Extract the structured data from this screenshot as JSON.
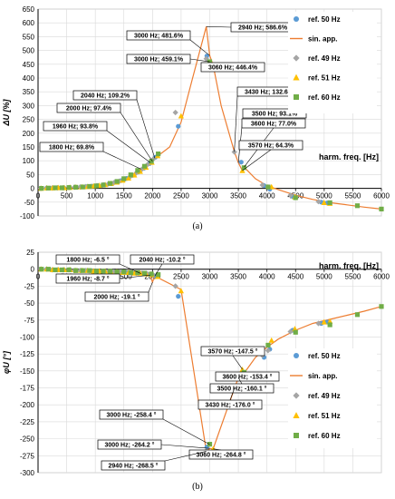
{
  "chart_data": [
    {
      "type": "scatter",
      "panel_label": "(a)",
      "xlabel": "harm. freq. [Hz]",
      "ylabel": "ΔU [%]",
      "xlim": [
        0,
        6000
      ],
      "ylim": [
        -100,
        650
      ],
      "xticks": [
        0,
        500,
        1000,
        1500,
        2000,
        2500,
        3000,
        3500,
        4000,
        4500,
        5000,
        5500,
        6000
      ],
      "yticks": [
        -100,
        -50,
        0,
        50,
        100,
        150,
        200,
        250,
        300,
        350,
        400,
        450,
        500,
        550,
        600,
        650
      ],
      "grid": true,
      "legend_position": "right",
      "series": [
        {
          "name": "ref. 50 Hz",
          "kind": "marker",
          "marker": "circle",
          "color": "#5b9bd5",
          "x": [
            50,
            150,
            250,
            350,
            450,
            550,
            650,
            750,
            850,
            950,
            1050,
            1150,
            1250,
            1350,
            1450,
            1550,
            1650,
            1750,
            1850,
            1950,
            2050,
            2450,
            2950,
            3550,
            3950,
            4050,
            4450,
            4950,
            5050
          ],
          "y": [
            0,
            1,
            1,
            2,
            2,
            3,
            4,
            5,
            6,
            8,
            10,
            13,
            17,
            22,
            28,
            36,
            47,
            59,
            73,
            90,
            113,
            225,
            480,
            95,
            10,
            -3,
            -30,
            -50,
            -53
          ]
        },
        {
          "name": "sin. app.",
          "kind": "line",
          "color": "#ed7d31",
          "x": [
            0,
            300,
            600,
            900,
            1200,
            1500,
            1800,
            1960,
            2000,
            2040,
            2300,
            2500,
            2700,
            2940,
            3000,
            3060,
            3200,
            3430,
            3500,
            3570,
            3600,
            3800,
            4000,
            4200,
            4500,
            4800,
            5100,
            5400,
            5700,
            6000
          ],
          "y": [
            0,
            2,
            4,
            6,
            13,
            25,
            69.8,
            93.8,
            97.4,
            109.2,
            150,
            240,
            400,
            586.6,
            481.6,
            446.4,
            300,
            132.6,
            93.1,
            64.3,
            77.0,
            35,
            10,
            -5,
            -25,
            -40,
            -52,
            -60,
            -68,
            -75
          ]
        },
        {
          "name": "ref. 49 Hz",
          "kind": "marker",
          "marker": "diamond",
          "color": "#a5a5a5",
          "x": [
            49,
            147,
            245,
            343,
            441,
            539,
            637,
            735,
            833,
            931,
            1029,
            1127,
            1225,
            1323,
            1421,
            1519,
            1617,
            1715,
            1813,
            1911,
            2009,
            2401,
            2940,
            3430,
            3920,
            4018,
            4410,
            4900
          ],
          "y": [
            0,
            1,
            1,
            2,
            2,
            3,
            4,
            5,
            6,
            7,
            10,
            12,
            16,
            20,
            26,
            34,
            44,
            56,
            69,
            86,
            105,
            275,
            470,
            132,
            12,
            5,
            -25,
            -48
          ]
        },
        {
          "name": "ref. 51 Hz",
          "kind": "marker",
          "marker": "triangle",
          "color": "#ffc000",
          "x": [
            51,
            153,
            255,
            357,
            459,
            561,
            663,
            765,
            867,
            969,
            1071,
            1173,
            1275,
            1377,
            1479,
            1581,
            1683,
            1785,
            1887,
            1989,
            2091,
            2499,
            3060,
            3570,
            4080,
            4488,
            4998,
            5100
          ],
          "y": [
            0,
            1,
            1,
            2,
            2,
            3,
            4,
            5,
            6,
            8,
            10,
            13,
            17,
            22,
            29,
            37,
            48,
            61,
            76,
            94,
            118,
            262,
            446,
            64,
            5,
            -31,
            -52,
            -55
          ]
        },
        {
          "name": "ref. 60 Hz",
          "kind": "marker",
          "marker": "square",
          "color": "#70ad47",
          "x": [
            60,
            180,
            300,
            420,
            540,
            660,
            780,
            900,
            1020,
            1140,
            1260,
            1380,
            1500,
            1620,
            1740,
            1860,
            1980,
            2100,
            3000,
            3600,
            4020,
            4500,
            5100,
            5580,
            6000
          ],
          "y": [
            0,
            1,
            2,
            2,
            3,
            4,
            5,
            7,
            9,
            12,
            18,
            25,
            35,
            49,
            65,
            80,
            98,
            125,
            459,
            75,
            5,
            -34,
            -52,
            -63,
            -75
          ]
        }
      ],
      "annotations": [
        {
          "text": "2940 Hz; 586.6%",
          "x": 2940,
          "y": 586.6
        },
        {
          "text": "3000 Hz; 481.6%",
          "x": 3000,
          "y": 481.6
        },
        {
          "text": "3000 Hz; 459.1%",
          "x": 3000,
          "y": 459.1
        },
        {
          "text": "3060 Hz; 446.4%",
          "x": 3060,
          "y": 446.4
        },
        {
          "text": "2040 Hz; 109.2%",
          "x": 2040,
          "y": 109.2
        },
        {
          "text": "2000 Hz; 97.4%",
          "x": 2000,
          "y": 97.4
        },
        {
          "text": "1960 Hz; 93.8%",
          "x": 1960,
          "y": 93.8
        },
        {
          "text": "1800 Hz; 69.8%",
          "x": 1800,
          "y": 69.8
        },
        {
          "text": "3430 Hz; 132.6%",
          "x": 3430,
          "y": 132.6
        },
        {
          "text": "3500 Hz; 93.1%",
          "x": 3500,
          "y": 93.1
        },
        {
          "text": "3600 Hz; 77.0%",
          "x": 3600,
          "y": 77.0
        },
        {
          "text": "3570 Hz; 64.3%",
          "x": 3570,
          "y": 64.3
        }
      ]
    },
    {
      "type": "scatter",
      "panel_label": "(b)",
      "xlabel": "harm. freq. [Hz]",
      "ylabel": "φU [°]",
      "xlim": [
        0,
        6000
      ],
      "ylim": [
        -300,
        25
      ],
      "xticks": [
        0,
        500,
        1000,
        1500,
        2000,
        2500,
        3000,
        3500,
        4000,
        4500,
        5000,
        5500,
        6000
      ],
      "yticks": [
        25,
        0,
        -25,
        -50,
        -75,
        -100,
        -125,
        -150,
        -175,
        -200,
        -225,
        -250,
        -275,
        -300
      ],
      "grid": true,
      "legend_position": "right",
      "series": [
        {
          "name": "ref. 50 Hz",
          "kind": "marker",
          "marker": "circle",
          "color": "#5b9bd5",
          "x": [
            50,
            150,
            250,
            350,
            450,
            550,
            650,
            750,
            850,
            950,
            1050,
            1150,
            1250,
            1350,
            1450,
            1550,
            1650,
            1750,
            1850,
            1950,
            2050,
            2450,
            2950,
            3550,
            3950,
            4050,
            4450,
            4950,
            5050
          ],
          "y": [
            0,
            0,
            -1,
            -1,
            -1,
            -1,
            -2,
            -2,
            -2,
            -3,
            -3,
            -3,
            -4,
            -4,
            -5,
            -5,
            -6,
            -6,
            -7,
            -8,
            -10,
            -40,
            -262,
            -160,
            -130,
            -118,
            -90,
            -80,
            -78
          ]
        },
        {
          "name": "sin. app.",
          "kind": "line",
          "color": "#ed7d31",
          "x": [
            0,
            500,
            1000,
            1500,
            1800,
            1960,
            2000,
            2040,
            2500,
            2940,
            3000,
            3060,
            3430,
            3500,
            3570,
            3600,
            3800,
            4000,
            4200,
            4500,
            4800,
            5100,
            5400,
            5700,
            6000
          ],
          "y": [
            0,
            -1,
            -2,
            -4,
            -6.5,
            -8.7,
            -19.1,
            -10.2,
            -30,
            -268.5,
            -264.2,
            -264.8,
            -176.0,
            -160.1,
            -147.5,
            -153.4,
            -130,
            -115,
            -103,
            -90,
            -80,
            -74,
            -68,
            -62,
            -55
          ]
        },
        {
          "name": "ref. 49 Hz",
          "kind": "marker",
          "marker": "diamond",
          "color": "#a5a5a5",
          "x": [
            49,
            147,
            245,
            343,
            441,
            539,
            637,
            735,
            833,
            931,
            1029,
            1127,
            1225,
            1323,
            1421,
            1519,
            1617,
            1715,
            1813,
            1911,
            2009,
            2401,
            2940,
            3430,
            3920,
            4018,
            4410,
            4900
          ],
          "y": [
            0,
            0,
            -1,
            -1,
            -1,
            -1,
            -2,
            -2,
            -2,
            -3,
            -3,
            -3,
            -4,
            -4,
            -4,
            -5,
            -5,
            -6,
            -6,
            -7,
            -9,
            -25,
            -268,
            -176,
            -127,
            -120,
            -92,
            -80
          ]
        },
        {
          "name": "ref. 51 Hz",
          "kind": "marker",
          "marker": "triangle",
          "color": "#ffc000",
          "x": [
            51,
            153,
            255,
            357,
            459,
            561,
            663,
            765,
            867,
            969,
            1071,
            1173,
            1275,
            1377,
            1479,
            1581,
            1683,
            1785,
            1887,
            1989,
            2091,
            2499,
            3060,
            3570,
            4080,
            4488,
            4998,
            5100
          ],
          "y": [
            0,
            0,
            -1,
            -1,
            -1,
            -1,
            -2,
            -2,
            -2,
            -3,
            -3,
            -3,
            -4,
            -4,
            -5,
            -5,
            -6,
            -6,
            -7,
            -8,
            -11,
            -32,
            -265,
            -148,
            -105,
            -88,
            -78,
            -77
          ]
        },
        {
          "name": "ref. 60 Hz",
          "kind": "marker",
          "marker": "square",
          "color": "#70ad47",
          "x": [
            60,
            180,
            300,
            420,
            540,
            660,
            780,
            900,
            1020,
            1140,
            1260,
            1380,
            1500,
            1620,
            1740,
            1860,
            1980,
            2100,
            3000,
            3600,
            4020,
            4500,
            5100,
            5580,
            6000
          ],
          "y": [
            0,
            0,
            -1,
            -1,
            -1,
            -2,
            -2,
            -2,
            -3,
            -3,
            -3,
            -4,
            -4,
            -5,
            -5,
            -6,
            -7,
            -8,
            -258,
            -152,
            -112,
            -93,
            -82,
            -67,
            -55
          ]
        }
      ],
      "annotations": [
        {
          "text": "1800 Hz; -6.5 °",
          "x": 1800,
          "y": -6.5
        },
        {
          "text": "2040 Hz; -10.2 °",
          "x": 2040,
          "y": -10.2
        },
        {
          "text": "1960 Hz; -8.7 °",
          "x": 1960,
          "y": -8.7
        },
        {
          "text": "2000 Hz; -19.1 °",
          "x": 2000,
          "y": -19.1
        },
        {
          "text": "3570 Hz; -147.5 °",
          "x": 3570,
          "y": -147.5
        },
        {
          "text": "3600 Hz; -153.4 °",
          "x": 3600,
          "y": -153.4
        },
        {
          "text": "3500 Hz; -160.1 °",
          "x": 3500,
          "y": -160.1
        },
        {
          "text": "3430 Hz; -176.0 °",
          "x": 3430,
          "y": -176.0
        },
        {
          "text": "3000 Hz; -258.4 °",
          "x": 3000,
          "y": -258.4
        },
        {
          "text": "3000 Hz; -264.2 °",
          "x": 3000,
          "y": -264.2
        },
        {
          "text": "3060 Hz; -264.8 °",
          "x": 3060,
          "y": -264.8
        },
        {
          "text": "2940 Hz; -268.5 °",
          "x": 2940,
          "y": -268.5
        }
      ]
    }
  ]
}
